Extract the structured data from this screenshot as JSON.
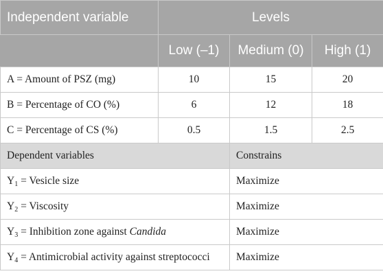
{
  "header": {
    "independent_variable": "Independent variable",
    "levels": "Levels",
    "low": "Low (–1)",
    "medium": "Medium (0)",
    "high": "High (1)"
  },
  "independent": [
    {
      "label": "A = Amount of PSZ (mg)",
      "low": "10",
      "medium": "15",
      "high": "20"
    },
    {
      "label": "B = Percentage of CO (%)",
      "low": "6",
      "medium": "12",
      "high": "18"
    },
    {
      "label": "C = Percentage of CS (%)",
      "low": "0.5",
      "medium": "1.5",
      "high": "2.5"
    }
  ],
  "dependent_header": {
    "label": "Dependent variables",
    "constraint": "Constrains"
  },
  "dependent": [
    {
      "symbol": "Y",
      "sub": "1",
      "text": " = Vesicle size",
      "italic": "",
      "constraint": "Maximize"
    },
    {
      "symbol": "Y",
      "sub": "2",
      "text": " = Viscosity",
      "italic": "",
      "constraint": "Maximize"
    },
    {
      "symbol": "Y",
      "sub": "3",
      "text": " = Inhibition zone against ",
      "italic": "Candida",
      "constraint": "Maximize"
    },
    {
      "symbol": "Y",
      "sub": "4",
      "text": " = Antimicrobial activity against streptococci",
      "italic": "",
      "constraint": "Maximize"
    }
  ]
}
